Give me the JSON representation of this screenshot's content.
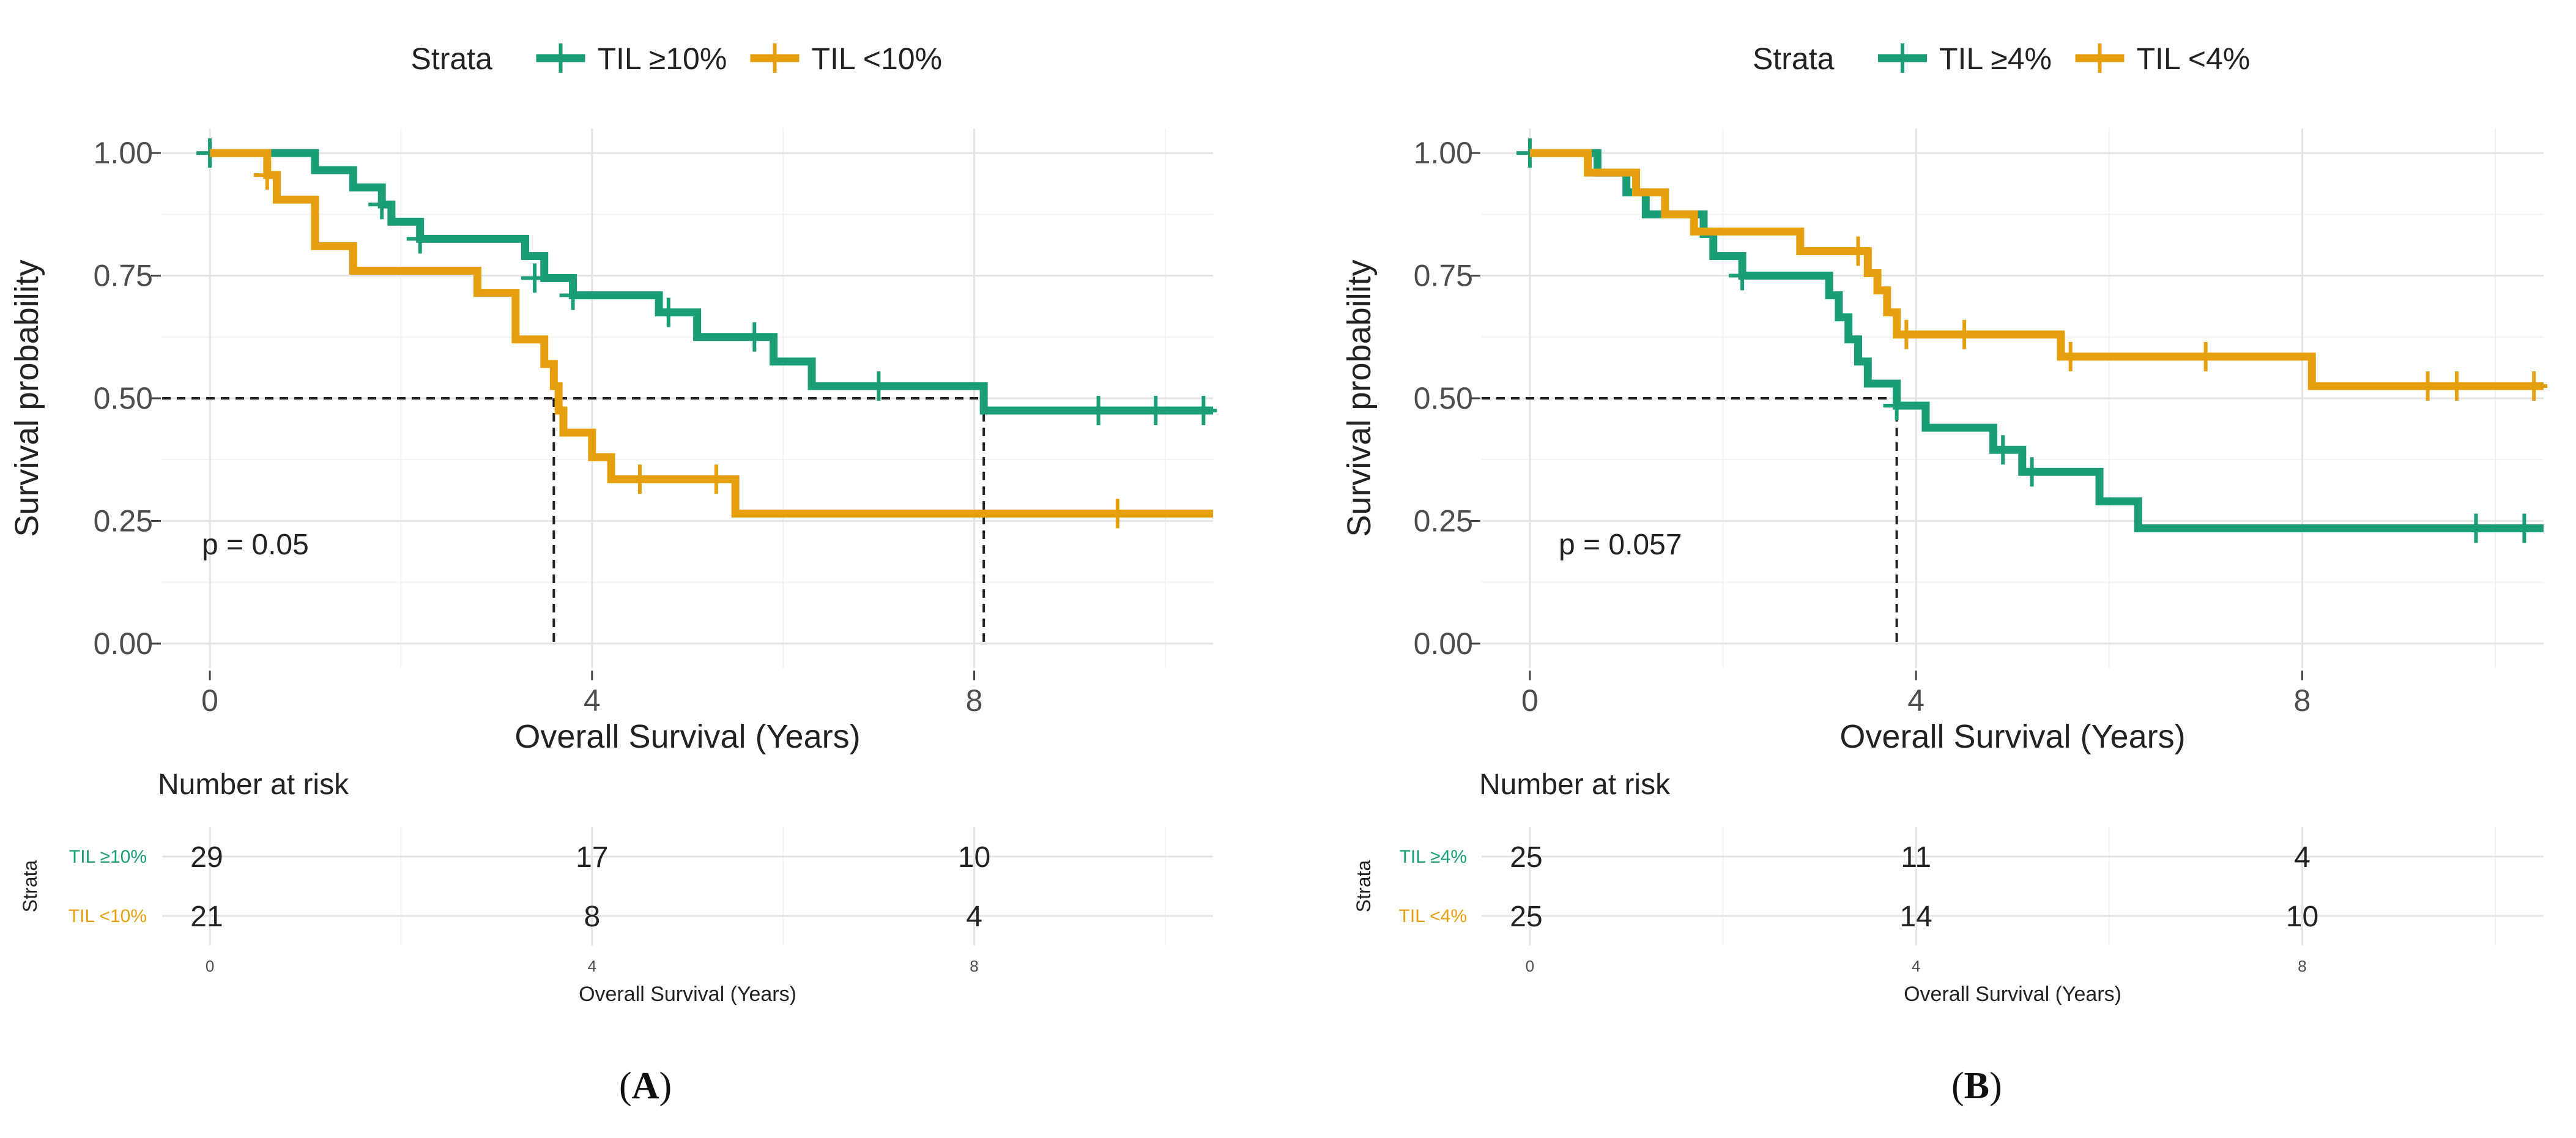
{
  "colors": {
    "high": "#1B9E77",
    "low": "#E6A00F",
    "grid_major": "#E4E4E4",
    "grid_minor": "#F2F2F2",
    "text": "#222222",
    "axis_text": "#4D4D4D"
  },
  "chart_data": [
    {
      "type": "line",
      "subtype": "kaplan-meier",
      "panel_label": "A",
      "legend": {
        "title": "Strata",
        "placement": "top-center"
      },
      "series": [
        {
          "name": "TIL ≥10%",
          "color_key": "high",
          "steps": [
            [
              0,
              1.0
            ],
            [
              1.1,
              0.965
            ],
            [
              1.5,
              0.93
            ],
            [
              1.8,
              0.895
            ],
            [
              1.9,
              0.86
            ],
            [
              2.2,
              0.825
            ],
            [
              3.3,
              0.79
            ],
            [
              3.5,
              0.745
            ],
            [
              3.8,
              0.71
            ],
            [
              4.7,
              0.675
            ],
            [
              5.1,
              0.625
            ],
            [
              5.9,
              0.575
            ],
            [
              6.3,
              0.525
            ],
            [
              8.1,
              0.475
            ],
            [
              10.5,
              0.475
            ]
          ],
          "censors": [
            [
              0,
              1.0
            ],
            [
              1.8,
              0.895
            ],
            [
              2.2,
              0.825
            ],
            [
              3.4,
              0.745
            ],
            [
              3.8,
              0.71
            ],
            [
              4.8,
              0.675
            ],
            [
              5.7,
              0.625
            ],
            [
              7.0,
              0.525
            ],
            [
              9.3,
              0.475
            ],
            [
              9.9,
              0.475
            ],
            [
              10.4,
              0.475
            ]
          ]
        },
        {
          "name": "TIL <10%",
          "color_key": "low",
          "steps": [
            [
              0,
              1.0
            ],
            [
              0.6,
              0.955
            ],
            [
              0.7,
              0.905
            ],
            [
              1.1,
              0.81
            ],
            [
              1.5,
              0.76
            ],
            [
              2.8,
              0.715
            ],
            [
              3.2,
              0.62
            ],
            [
              3.5,
              0.57
            ],
            [
              3.6,
              0.525
            ],
            [
              3.65,
              0.475
            ],
            [
              3.7,
              0.43
            ],
            [
              4.0,
              0.38
            ],
            [
              4.2,
              0.335
            ],
            [
              5.5,
              0.265
            ],
            [
              10.5,
              0.265
            ]
          ],
          "censors": [
            [
              0.6,
              0.955
            ],
            [
              4.5,
              0.335
            ],
            [
              5.3,
              0.335
            ],
            [
              9.5,
              0.265
            ]
          ]
        }
      ],
      "medians": [
        3.6,
        8.1
      ],
      "annotation": "p = 0.05",
      "xlabel": "Overall Survival (Years)",
      "ylabel": "Survival probability",
      "xlim": [
        -0.5,
        10.5
      ],
      "ylim": [
        -0.05,
        1.05
      ],
      "x_ticks": [
        "0",
        "4",
        "8"
      ],
      "y_ticks": [
        "0.00",
        "0.25",
        "0.50",
        "0.75",
        "1.00"
      ],
      "risk_table": {
        "title": "Number at risk",
        "ylabel": "Strata",
        "xlabel": "Overall Survival (Years)",
        "x_ticks": [
          "0",
          "4",
          "8"
        ],
        "rows": [
          {
            "label": "TIL ≥10%",
            "color_key": "high",
            "counts": [
              "29",
              "17",
              "10"
            ]
          },
          {
            "label": "TIL <10%",
            "color_key": "low",
            "counts": [
              "21",
              "8",
              "4"
            ]
          }
        ]
      }
    },
    {
      "type": "line",
      "subtype": "kaplan-meier",
      "panel_label": "B",
      "legend": {
        "title": "Strata",
        "placement": "top-center"
      },
      "series": [
        {
          "name": "TIL ≥4%",
          "color_key": "high",
          "steps": [
            [
              0,
              1.0
            ],
            [
              0.7,
              0.96
            ],
            [
              1.0,
              0.92
            ],
            [
              1.2,
              0.875
            ],
            [
              1.8,
              0.835
            ],
            [
              1.9,
              0.79
            ],
            [
              2.2,
              0.75
            ],
            [
              3.1,
              0.71
            ],
            [
              3.2,
              0.665
            ],
            [
              3.3,
              0.62
            ],
            [
              3.4,
              0.575
            ],
            [
              3.5,
              0.53
            ],
            [
              3.8,
              0.485
            ],
            [
              4.1,
              0.44
            ],
            [
              4.8,
              0.395
            ],
            [
              5.1,
              0.35
            ],
            [
              5.9,
              0.29
            ],
            [
              6.3,
              0.235
            ],
            [
              10.5,
              0.235
            ]
          ],
          "censors": [
            [
              0,
              1.0
            ],
            [
              2.2,
              0.75
            ],
            [
              3.8,
              0.485
            ],
            [
              4.9,
              0.395
            ],
            [
              5.2,
              0.35
            ],
            [
              9.8,
              0.235
            ],
            [
              10.3,
              0.235
            ]
          ]
        },
        {
          "name": "TIL <4%",
          "color_key": "low",
          "steps": [
            [
              0,
              1.0
            ],
            [
              0.6,
              0.96
            ],
            [
              1.1,
              0.92
            ],
            [
              1.4,
              0.875
            ],
            [
              1.7,
              0.84
            ],
            [
              2.8,
              0.8
            ],
            [
              3.5,
              0.755
            ],
            [
              3.6,
              0.72
            ],
            [
              3.7,
              0.675
            ],
            [
              3.8,
              0.63
            ],
            [
              5.5,
              0.585
            ],
            [
              8.1,
              0.525
            ],
            [
              10.5,
              0.525
            ]
          ],
          "censors": [
            [
              3.4,
              0.8
            ],
            [
              3.9,
              0.63
            ],
            [
              4.5,
              0.63
            ],
            [
              5.6,
              0.585
            ],
            [
              7.0,
              0.585
            ],
            [
              9.3,
              0.525
            ],
            [
              9.6,
              0.525
            ],
            [
              10.4,
              0.525
            ]
          ]
        }
      ],
      "medians": [
        3.8
      ],
      "annotation": "p = 0.057",
      "xlabel": "Overall Survival (Years)",
      "ylabel": "Survival probability",
      "xlim": [
        -0.5,
        10.5
      ],
      "ylim": [
        -0.05,
        1.05
      ],
      "x_ticks": [
        "0",
        "4",
        "8"
      ],
      "y_ticks": [
        "0.00",
        "0.25",
        "0.50",
        "0.75",
        "1.00"
      ],
      "risk_table": {
        "title": "Number at risk",
        "ylabel": "Strata",
        "xlabel": "Overall Survival (Years)",
        "x_ticks": [
          "0",
          "4",
          "8"
        ],
        "rows": [
          {
            "label": "TIL ≥4%",
            "color_key": "high",
            "counts": [
              "25",
              "11",
              "4"
            ]
          },
          {
            "label": "TIL <4%",
            "color_key": "low",
            "counts": [
              "25",
              "14",
              "10"
            ]
          }
        ]
      }
    }
  ]
}
